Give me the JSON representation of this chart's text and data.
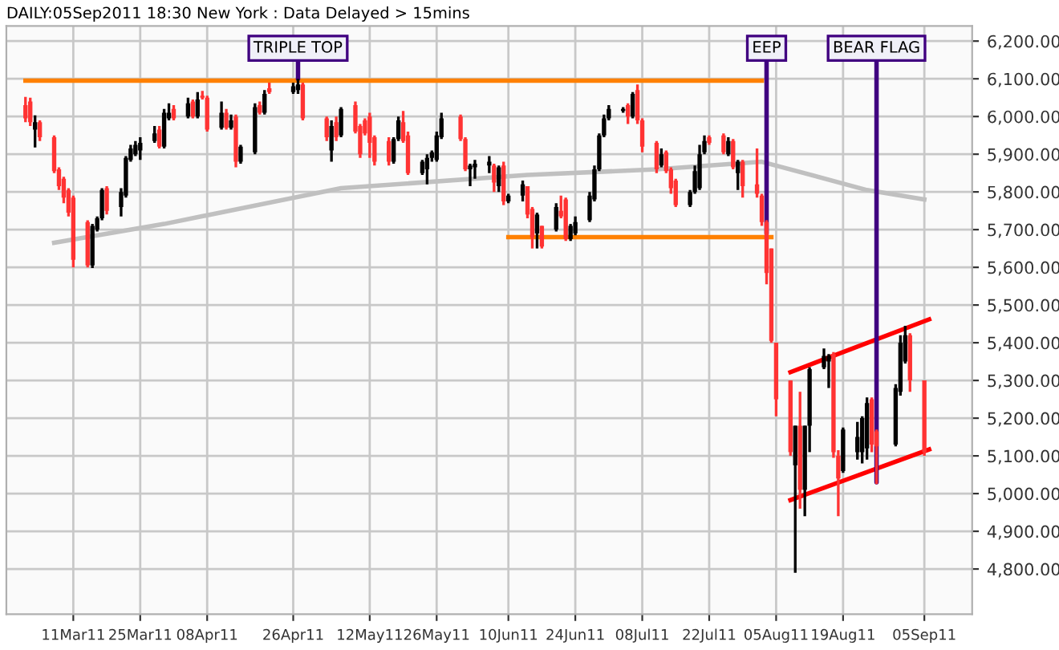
{
  "chart_data": {
    "type": "candlestick",
    "title": "DAILY:05Sep2011 18:30 New York : Data Delayed > 15mins",
    "x": [
      "2011-03-01",
      "2011-03-02",
      "2011-03-03",
      "2011-03-04",
      "2011-03-07",
      "2011-03-08",
      "2011-03-09",
      "2011-03-10",
      "2011-03-11",
      "2011-03-14",
      "2011-03-15",
      "2011-03-16",
      "2011-03-17",
      "2011-03-18",
      "2011-03-21",
      "2011-03-22",
      "2011-03-23",
      "2011-03-24",
      "2011-03-25",
      "2011-03-28",
      "2011-03-29",
      "2011-03-30",
      "2011-03-31",
      "2011-04-01",
      "2011-04-04",
      "2011-04-05",
      "2011-04-06",
      "2011-04-07",
      "2011-04-08",
      "2011-04-11",
      "2011-04-12",
      "2011-04-13",
      "2011-04-14",
      "2011-04-15",
      "2011-04-18",
      "2011-04-19",
      "2011-04-20",
      "2011-04-21",
      "2011-04-26",
      "2011-04-27",
      "2011-04-28",
      "2011-05-03",
      "2011-05-04",
      "2011-05-05",
      "2011-05-06",
      "2011-05-09",
      "2011-05-10",
      "2011-05-11",
      "2011-05-12",
      "2011-05-13",
      "2011-05-16",
      "2011-05-17",
      "2011-05-18",
      "2011-05-19",
      "2011-05-20",
      "2011-05-23",
      "2011-05-24",
      "2011-05-25",
      "2011-05-26",
      "2011-05-27",
      "2011-05-31",
      "2011-06-01",
      "2011-06-02",
      "2011-06-03",
      "2011-06-06",
      "2011-06-07",
      "2011-06-08",
      "2011-06-09",
      "2011-06-10",
      "2011-06-13",
      "2011-06-14",
      "2011-06-15",
      "2011-06-16",
      "2011-06-17",
      "2011-06-20",
      "2011-06-21",
      "2011-06-22",
      "2011-06-23",
      "2011-06-24",
      "2011-06-27",
      "2011-06-28",
      "2011-06-29",
      "2011-06-30",
      "2011-07-01",
      "2011-07-04",
      "2011-07-05",
      "2011-07-06",
      "2011-07-07",
      "2011-07-08",
      "2011-07-11",
      "2011-07-12",
      "2011-07-13",
      "2011-07-14",
      "2011-07-15",
      "2011-07-18",
      "2011-07-19",
      "2011-07-20",
      "2011-07-21",
      "2011-07-22",
      "2011-07-25",
      "2011-07-26",
      "2011-07-27",
      "2011-07-28",
      "2011-07-29",
      "2011-08-01",
      "2011-08-02",
      "2011-08-03",
      "2011-08-04",
      "2011-08-05",
      "2011-08-08",
      "2011-08-09",
      "2011-08-10",
      "2011-08-11",
      "2011-08-12",
      "2011-08-15",
      "2011-08-16",
      "2011-08-17",
      "2011-08-18",
      "2011-08-19",
      "2011-08-22",
      "2011-08-23",
      "2011-08-24",
      "2011-08-25",
      "2011-08-26",
      "2011-08-30",
      "2011-08-31",
      "2011-09-01",
      "2011-09-02",
      "2011-09-05"
    ],
    "ohlc": [
      [
        6030,
        6052,
        5985,
        5995
      ],
      [
        6040,
        6050,
        5975,
        5985
      ],
      [
        5965,
        6003,
        5918,
        5985
      ],
      [
        5985,
        5990,
        5935,
        5945
      ],
      [
        5945,
        5950,
        5850,
        5855
      ],
      [
        5860,
        5865,
        5805,
        5815
      ],
      [
        5835,
        5840,
        5770,
        5785
      ],
      [
        5805,
        5810,
        5735,
        5745
      ],
      [
        5785,
        5790,
        5600,
        5620
      ],
      [
        5720,
        5725,
        5600,
        5605
      ],
      [
        5605,
        5715,
        5598,
        5710
      ],
      [
        5700,
        5735,
        5695,
        5730
      ],
      [
        5730,
        5810,
        5725,
        5805
      ],
      [
        5810,
        5815,
        5740,
        5750
      ],
      [
        5760,
        5810,
        5735,
        5800
      ],
      [
        5790,
        5895,
        5785,
        5890
      ],
      [
        5885,
        5925,
        5880,
        5915
      ],
      [
        5900,
        5935,
        5895,
        5925
      ],
      [
        5910,
        5945,
        5885,
        5930
      ],
      [
        5935,
        5975,
        5930,
        5955
      ],
      [
        5965,
        5975,
        5915,
        5920
      ],
      [
        5920,
        6020,
        5915,
        6010
      ],
      [
        5995,
        6035,
        5990,
        6010
      ],
      [
        6020,
        6030,
        5990,
        5995
      ],
      [
        6000,
        6050,
        5995,
        6035
      ],
      [
        6040,
        6045,
        5995,
        6000
      ],
      [
        6000,
        6065,
        5995,
        6045
      ],
      [
        6055,
        6068,
        6045,
        6050
      ],
      [
        6050,
        6055,
        5960,
        5965
      ],
      [
        5970,
        6040,
        5965,
        6010
      ],
      [
        6010,
        6020,
        5965,
        5970
      ],
      [
        5970,
        6005,
        5965,
        5990
      ],
      [
        6000,
        6005,
        5865,
        5880
      ],
      [
        5880,
        5925,
        5875,
        5920
      ],
      [
        5905,
        6035,
        5900,
        6025
      ],
      [
        6030,
        6040,
        6005,
        6010
      ],
      [
        6010,
        6070,
        6005,
        6060
      ],
      [
        6075,
        6090,
        6060,
        6065
      ],
      [
        6065,
        6090,
        6060,
        6080
      ],
      [
        6070,
        6100,
        6060,
        6085
      ],
      [
        6085,
        6090,
        5990,
        5995
      ],
      [
        5995,
        6000,
        5935,
        5945
      ],
      [
        5910,
        5990,
        5880,
        5975
      ],
      [
        5985,
        6000,
        5935,
        5945
      ],
      [
        5950,
        6025,
        5945,
        6020
      ],
      [
        6030,
        6040,
        5955,
        5960
      ],
      [
        5975,
        5980,
        5890,
        5900
      ],
      [
        5990,
        5995,
        5950,
        5955
      ],
      [
        6000,
        6010,
        5890,
        5930
      ],
      [
        5945,
        5950,
        5870,
        5880
      ],
      [
        5935,
        5945,
        5870,
        5880
      ],
      [
        5880,
        5945,
        5875,
        5940
      ],
      [
        5940,
        6000,
        5935,
        5990
      ],
      [
        5985,
        6015,
        5930,
        5935
      ],
      [
        5950,
        5960,
        5845,
        5850
      ],
      [
        5850,
        5885,
        5845,
        5880
      ],
      [
        5860,
        5900,
        5820,
        5890
      ],
      [
        5890,
        5910,
        5880,
        5905
      ],
      [
        5885,
        5960,
        5880,
        5950
      ],
      [
        5945,
        6010,
        5940,
        5995
      ],
      [
        6000,
        6005,
        5935,
        5940
      ],
      [
        5940,
        5945,
        5855,
        5860
      ],
      [
        5860,
        5875,
        5815,
        5870
      ],
      [
        5865,
        5885,
        5835,
        5875
      ],
      [
        5870,
        5895,
        5850,
        5880
      ],
      [
        5870,
        5875,
        5800,
        5825
      ],
      [
        5815,
        5870,
        5800,
        5865
      ],
      [
        5870,
        5880,
        5765,
        5775
      ],
      [
        5775,
        5795,
        5770,
        5790
      ],
      [
        5790,
        5830,
        5775,
        5820
      ],
      [
        5815,
        5815,
        5730,
        5740
      ],
      [
        5755,
        5760,
        5650,
        5680
      ],
      [
        5690,
        5745,
        5650,
        5740
      ],
      [
        5710,
        5710,
        5650,
        5655
      ],
      [
        5700,
        5770,
        5695,
        5760
      ],
      [
        5750,
        5790,
        5730,
        5735
      ],
      [
        5780,
        5785,
        5670,
        5675
      ],
      [
        5675,
        5715,
        5670,
        5710
      ],
      [
        5690,
        5735,
        5685,
        5720
      ],
      [
        5725,
        5800,
        5720,
        5790
      ],
      [
        5780,
        5870,
        5775,
        5860
      ],
      [
        5860,
        5955,
        5855,
        5950
      ],
      [
        5950,
        6005,
        5945,
        5995
      ],
      [
        5995,
        6030,
        5990,
        6020
      ],
      [
        6015,
        6025,
        6010,
        6020
      ],
      [
        6030,
        6035,
        5980,
        6000
      ],
      [
        6000,
        6065,
        5995,
        6060
      ],
      [
        6070,
        6085,
        5980,
        5990
      ],
      [
        5990,
        5995,
        5905,
        5920
      ],
      [
        5930,
        5935,
        5850,
        5860
      ],
      [
        5870,
        5915,
        5865,
        5900
      ],
      [
        5905,
        5910,
        5850,
        5855
      ],
      [
        5860,
        5865,
        5795,
        5810
      ],
      [
        5830,
        5835,
        5760,
        5765
      ],
      [
        5765,
        5805,
        5760,
        5800
      ],
      [
        5800,
        5870,
        5795,
        5855
      ],
      [
        5810,
        5925,
        5805,
        5900
      ],
      [
        5905,
        5950,
        5900,
        5935
      ],
      [
        5945,
        5950,
        5925,
        5930
      ],
      [
        5950,
        5955,
        5900,
        5905
      ],
      [
        5900,
        5945,
        5895,
        5935
      ],
      [
        5935,
        5940,
        5860,
        5865
      ],
      [
        5850,
        5885,
        5805,
        5880
      ],
      [
        5880,
        5885,
        5785,
        5815
      ],
      [
        5820,
        5915,
        5785,
        5795
      ],
      [
        5790,
        5795,
        5710,
        5720
      ],
      [
        5720,
        5725,
        5555,
        5585
      ],
      [
        5650,
        5650,
        5400,
        5405
      ],
      [
        5400,
        5400,
        5205,
        5250
      ],
      [
        5300,
        5300,
        5100,
        5110
      ],
      [
        5075,
        5180,
        4790,
        5180
      ],
      [
        5180,
        5270,
        4960,
        5010
      ],
      [
        5010,
        5180,
        4940,
        5180
      ],
      [
        5180,
        5335,
        5110,
        5330
      ],
      [
        5335,
        5385,
        5330,
        5365
      ],
      [
        5350,
        5370,
        5280,
        5365
      ],
      [
        5370,
        5375,
        5095,
        5110
      ],
      [
        5100,
        5115,
        4940,
        5040
      ],
      [
        5060,
        5175,
        5055,
        5170
      ],
      [
        5110,
        5190,
        5090,
        5150
      ],
      [
        5110,
        5205,
        5080,
        5200
      ],
      [
        5120,
        5255,
        5090,
        5240
      ],
      [
        5250,
        5255,
        5110,
        5130
      ],
      [
        5165,
        5170,
        5025,
        5125
      ],
      [
        5130,
        5290,
        5125,
        5280
      ],
      [
        5270,
        5420,
        5260,
        5400
      ],
      [
        5350,
        5445,
        5345,
        5420
      ],
      [
        5420,
        5425,
        5270,
        5300
      ],
      [
        5300,
        5300,
        5100,
        5110
      ]
    ],
    "colors": [
      "#ff3333",
      "#ff3333",
      "#000000",
      "#ff3333",
      "#ff3333",
      "#ff3333",
      "#ff3333",
      "#ff3333",
      "#ff3333",
      "#ff3333",
      "#000000",
      "#000000",
      "#000000",
      "#ff3333",
      "#000000",
      "#000000",
      "#000000",
      "#000000",
      "#000000",
      "#000000",
      "#ff3333",
      "#000000",
      "#000000",
      "#ff3333",
      "#000000",
      "#ff3333",
      "#000000",
      "#ff3333",
      "#ff3333",
      "#000000",
      "#ff3333",
      "#000000",
      "#ff3333",
      "#000000",
      "#000000",
      "#ff3333",
      "#000000",
      "#ff3333",
      "#000000",
      "#000000",
      "#ff3333",
      "#ff3333",
      "#000000",
      "#ff3333",
      "#000000",
      "#ff3333",
      "#ff3333",
      "#ff3333",
      "#ff3333",
      "#ff3333",
      "#ff3333",
      "#000000",
      "#000000",
      "#ff3333",
      "#ff3333",
      "#000000",
      "#000000",
      "#000000",
      "#000000",
      "#000000",
      "#ff3333",
      "#ff3333",
      "#000000",
      "#000000",
      "#000000",
      "#ff3333",
      "#000000",
      "#ff3333",
      "#000000",
      "#000000",
      "#ff3333",
      "#ff3333",
      "#000000",
      "#ff3333",
      "#000000",
      "#ff3333",
      "#ff3333",
      "#000000",
      "#000000",
      "#000000",
      "#000000",
      "#000000",
      "#000000",
      "#000000",
      "#000000",
      "#ff3333",
      "#000000",
      "#ff3333",
      "#ff3333",
      "#ff3333",
      "#000000",
      "#ff3333",
      "#ff3333",
      "#ff3333",
      "#000000",
      "#000000",
      "#000000",
      "#000000",
      "#ff3333",
      "#ff3333",
      "#000000",
      "#ff3333",
      "#000000",
      "#ff3333",
      "#ff3333",
      "#ff3333",
      "#ff3333",
      "#ff3333",
      "#ff3333",
      "#ff3333",
      "#000000",
      "#ff3333",
      "#000000",
      "#000000",
      "#000000",
      "#000000",
      "#ff3333",
      "#ff3333",
      "#000000",
      "#000000",
      "#000000",
      "#000000",
      "#ff3333",
      "#ff3333",
      "#000000",
      "#000000",
      "#000000",
      "#ff3333",
      "#ff3333"
    ],
    "series": [
      {
        "type": "line",
        "color": "#c0c0c0",
        "x": [
          "2011-03-07",
          "2011-03-30",
          "2011-05-06",
          "2011-06-14",
          "2011-07-11",
          "2011-08-02",
          "2011-08-24",
          "2011-09-05"
        ],
        "values": [
          5665,
          5715,
          5810,
          5845,
          5860,
          5880,
          5805,
          5780
        ]
      },
      {
        "type": "line",
        "color": "#ff8000",
        "x": [
          "2011-03-01",
          "2011-08-02"
        ],
        "values": [
          6095,
          6095
        ]
      },
      {
        "type": "line",
        "color": "#ff8000",
        "x": [
          "2011-06-10",
          "2011-08-04"
        ],
        "values": [
          5680,
          5680
        ]
      },
      {
        "type": "line",
        "color": "#ff0000",
        "x": [
          "2011-08-08",
          "2011-09-06"
        ],
        "values": [
          5322,
          5462
        ]
      },
      {
        "type": "line",
        "color": "#ff0000",
        "x": [
          "2011-08-08",
          "2011-09-06"
        ],
        "values": [
          4983,
          5117
        ]
      }
    ],
    "annotations": [
      {
        "text": "TRIPLE TOP",
        "x": "2011-04-27",
        "y": 6100
      },
      {
        "text": "EEP",
        "x": "2011-08-03",
        "y": 5690
      },
      {
        "text": "BEAR FLAG",
        "x": "2011-08-26",
        "y": 5030
      }
    ],
    "xlim": [
      "2011-02-25",
      "2011-09-15"
    ],
    "xticks": [
      {
        "value": "2011-03-11",
        "label": "11Mar11"
      },
      {
        "value": "2011-03-25",
        "label": "25Mar11"
      },
      {
        "value": "2011-04-08",
        "label": "08Apr11"
      },
      {
        "value": "2011-04-26",
        "label": "26Apr11"
      },
      {
        "value": "2011-05-12",
        "label": "12May11"
      },
      {
        "value": "2011-05-26",
        "label": "26May11"
      },
      {
        "value": "2011-06-10",
        "label": "10Jun11"
      },
      {
        "value": "2011-06-24",
        "label": "24Jun11"
      },
      {
        "value": "2011-07-08",
        "label": "08Jul11"
      },
      {
        "value": "2011-07-22",
        "label": "22Jul11"
      },
      {
        "value": "2011-08-05",
        "label": "05Aug11"
      },
      {
        "value": "2011-08-19",
        "label": "19Aug11"
      },
      {
        "value": "2011-09-05",
        "label": "05Sep11"
      }
    ],
    "ylim": [
      4680,
      6240
    ],
    "yticks": [
      {
        "value": 4800,
        "label": "4,800.00"
      },
      {
        "value": 4900,
        "label": "4,900.00"
      },
      {
        "value": 5000,
        "label": "5,000.00"
      },
      {
        "value": 5100,
        "label": "5,100.00"
      },
      {
        "value": 5200,
        "label": "5,200.00"
      },
      {
        "value": 5300,
        "label": "5,300.00"
      },
      {
        "value": 5400,
        "label": "5,400.00"
      },
      {
        "value": 5500,
        "label": "5,500.00"
      },
      {
        "value": 5600,
        "label": "5,600.00"
      },
      {
        "value": 5700,
        "label": "5,700.00"
      },
      {
        "value": 5800,
        "label": "5,800.00"
      },
      {
        "value": 5900,
        "label": "5,900.00"
      },
      {
        "value": 6000,
        "label": "6,000.00"
      },
      {
        "value": 6100,
        "label": "6,100.00"
      },
      {
        "value": 6200,
        "label": "6,200.00"
      }
    ],
    "grid": true
  }
}
